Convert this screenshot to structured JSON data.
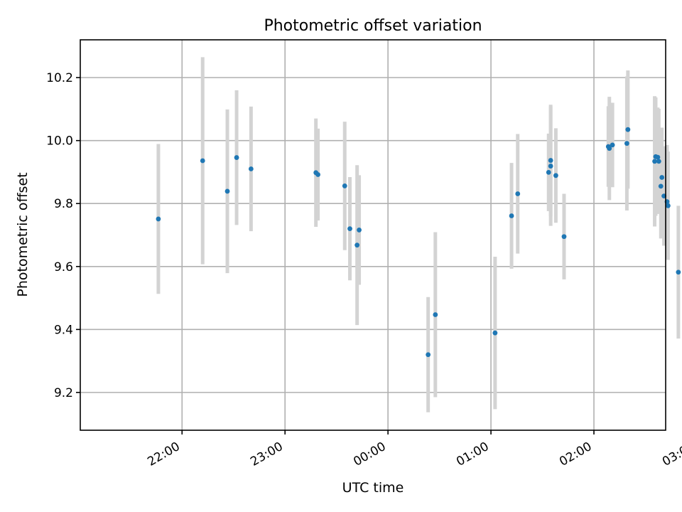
{
  "chart_data": {
    "type": "scatter",
    "title": "Photometric offset variation",
    "xlabel": "UTC time",
    "ylabel": "Photometric offset",
    "x_unit": "minutes after 22:00 UTC (x axis labelled in HH:MM)",
    "xlim": [
      -59.3,
      281.8
    ],
    "ylim": [
      9.08,
      10.32
    ],
    "x_ticks": [
      0,
      60,
      120,
      180,
      240,
      300
    ],
    "x_tick_labels": [
      "22:00",
      "23:00",
      "00:00",
      "01:00",
      "02:00",
      "03:00"
    ],
    "y_ticks": [
      9.2,
      9.4,
      9.6,
      9.8,
      10.0,
      10.2
    ],
    "y_tick_labels": [
      "9.2",
      "9.4",
      "9.6",
      "9.8",
      "10.0",
      "10.2"
    ],
    "grid": true,
    "colors": {
      "point": "#1f77b4",
      "errorbar": "#d3d3d3",
      "grid": "#b0b0b0"
    },
    "series": [
      {
        "points": [
          {
            "x": 21.77,
            "y": 9.751,
            "err": 0.238
          },
          {
            "x": 22.2,
            "y": 9.936,
            "err": 0.329
          },
          {
            "x": 22.44,
            "y": 9.839,
            "err": 0.26
          },
          {
            "x": 22.53,
            "y": 9.946,
            "err": 0.214
          },
          {
            "x": 22.67,
            "y": 9.91,
            "err": 0.198
          },
          {
            "x": 23.3,
            "y": 9.898,
            "err": 0.172
          },
          {
            "x": 23.32,
            "y": 9.892,
            "err": 0.146
          },
          {
            "x": 23.58,
            "y": 9.856,
            "err": 0.204
          },
          {
            "x": 23.63,
            "y": 9.72,
            "err": 0.164
          },
          {
            "x": 23.7,
            "y": 9.668,
            "err": 0.254
          },
          {
            "x": 23.72,
            "y": 9.716,
            "err": 0.174
          },
          {
            "x": 24.39,
            "y": 9.32,
            "err": 0.183
          },
          {
            "x": 24.46,
            "y": 9.447,
            "err": 0.262
          },
          {
            "x": 25.04,
            "y": 9.389,
            "err": 0.242
          },
          {
            "x": 25.2,
            "y": 9.761,
            "err": 0.168
          },
          {
            "x": 25.26,
            "y": 9.831,
            "err": 0.19
          },
          {
            "x": 25.56,
            "y": 9.899,
            "err": 0.123
          },
          {
            "x": 25.58,
            "y": 9.937,
            "err": 0.177
          },
          {
            "x": 25.58,
            "y": 9.919,
            "err": 0.19
          },
          {
            "x": 25.63,
            "y": 9.889,
            "err": 0.15
          },
          {
            "x": 25.71,
            "y": 9.695,
            "err": 0.136
          },
          {
            "x": 26.14,
            "y": 9.981,
            "err": 0.128
          },
          {
            "x": 26.15,
            "y": 9.975,
            "err": 0.164
          },
          {
            "x": 26.18,
            "y": 9.986,
            "err": 0.134
          },
          {
            "x": 26.33,
            "y": 10.035,
            "err": 0.188
          },
          {
            "x": 26.32,
            "y": 9.991,
            "err": 0.213
          },
          {
            "x": 26.59,
            "y": 9.934,
            "err": 0.207
          },
          {
            "x": 26.6,
            "y": 9.949,
            "err": 0.188
          },
          {
            "x": 26.62,
            "y": 9.947,
            "err": 0.158
          },
          {
            "x": 26.63,
            "y": 9.934,
            "err": 0.167
          },
          {
            "x": 26.65,
            "y": 9.855,
            "err": 0.166
          },
          {
            "x": 26.66,
            "y": 9.883,
            "err": 0.158
          },
          {
            "x": 26.68,
            "y": 9.824,
            "err": 0.158
          },
          {
            "x": 26.71,
            "y": 9.806,
            "err": 0.18
          },
          {
            "x": 26.72,
            "y": 9.793,
            "err": 0.172
          },
          {
            "x": 26.82,
            "y": 9.582,
            "err": 0.211
          }
        ]
      }
    ]
  }
}
